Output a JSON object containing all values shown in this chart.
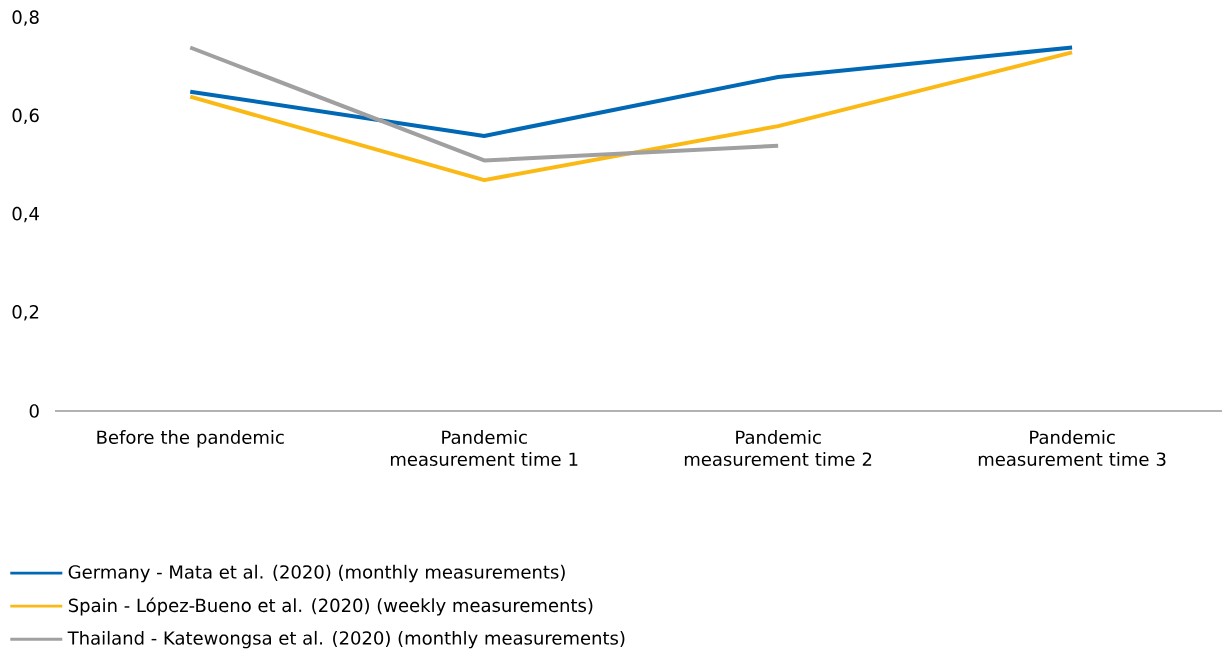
{
  "chart_data": {
    "type": "line",
    "categories": [
      "Before the pandemic",
      "Pandemic measurement time 1",
      "Pandemic measurement time 2",
      "Pandemic measurement time 3"
    ],
    "series": [
      {
        "name": "Germany - Mata et al. (2020) (monthly measurements)",
        "color": "#0068b4",
        "values": [
          0.65,
          0.56,
          0.68,
          0.74
        ]
      },
      {
        "name": "Spain - López-Bueno et al. (2020) (weekly measurements)",
        "color": "#fbb915",
        "values": [
          0.64,
          0.47,
          0.58,
          0.73
        ]
      },
      {
        "name": "Thailand - Katewongsa et al. (2020) (monthly measurements)",
        "color": "#a0a0a0",
        "values": [
          0.74,
          0.51,
          0.54,
          null
        ]
      }
    ],
    "ylim": [
      0,
      0.8
    ],
    "yticks": [
      {
        "value": 0,
        "label": "0"
      },
      {
        "value": 0.2,
        "label": "0,2"
      },
      {
        "value": 0.4,
        "label": "0,4"
      },
      {
        "value": 0.6,
        "label": "0,6"
      },
      {
        "value": 0.8,
        "label": "0,8"
      }
    ],
    "legend": "bottom"
  }
}
